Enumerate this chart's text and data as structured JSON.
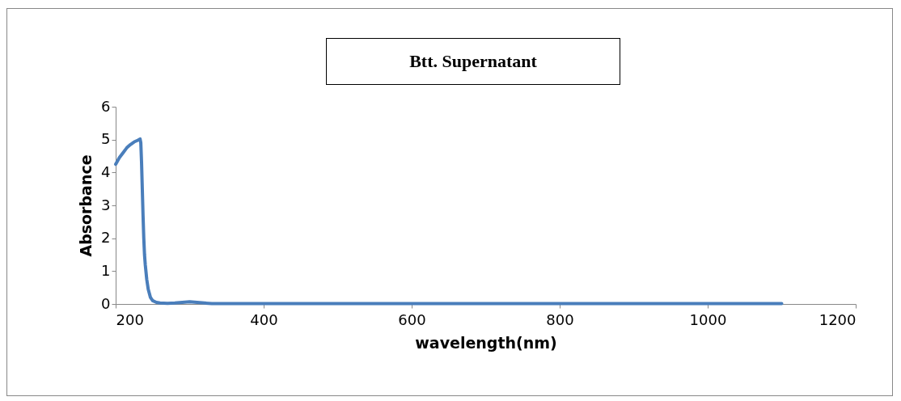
{
  "chart_data": {
    "type": "line",
    "title": "Btt. Supernatant",
    "xlabel": "wavelength(nm)",
    "ylabel": "Absorbance",
    "x": [
      200,
      205,
      210,
      215,
      220,
      225,
      230,
      233,
      234,
      235,
      236,
      237,
      238,
      239,
      240,
      242,
      244,
      247,
      250,
      255,
      260,
      270,
      280,
      290,
      300,
      310,
      320,
      330,
      340,
      400,
      600,
      800,
      1000,
      1100
    ],
    "series": [
      {
        "color": "#4a7ebb",
        "values": [
          4.25,
          4.45,
          4.6,
          4.75,
          4.85,
          4.93,
          4.98,
          5.02,
          4.9,
          4.3,
          3.5,
          2.7,
          2.0,
          1.5,
          1.2,
          0.75,
          0.45,
          0.2,
          0.1,
          0.05,
          0.03,
          0.02,
          0.03,
          0.05,
          0.07,
          0.05,
          0.03,
          0.01,
          0.01,
          0.01,
          0.01,
          0.01,
          0.01,
          0.01
        ]
      }
    ],
    "xlim": [
      200,
      1200
    ],
    "xticks": [
      200,
      400,
      600,
      800,
      1000,
      1200
    ],
    "ylim": [
      0,
      6
    ],
    "yticks": [
      0,
      1,
      2,
      3,
      4,
      5,
      6
    ],
    "grid": false,
    "legend": false,
    "marker": "none",
    "line_style": "solid"
  }
}
